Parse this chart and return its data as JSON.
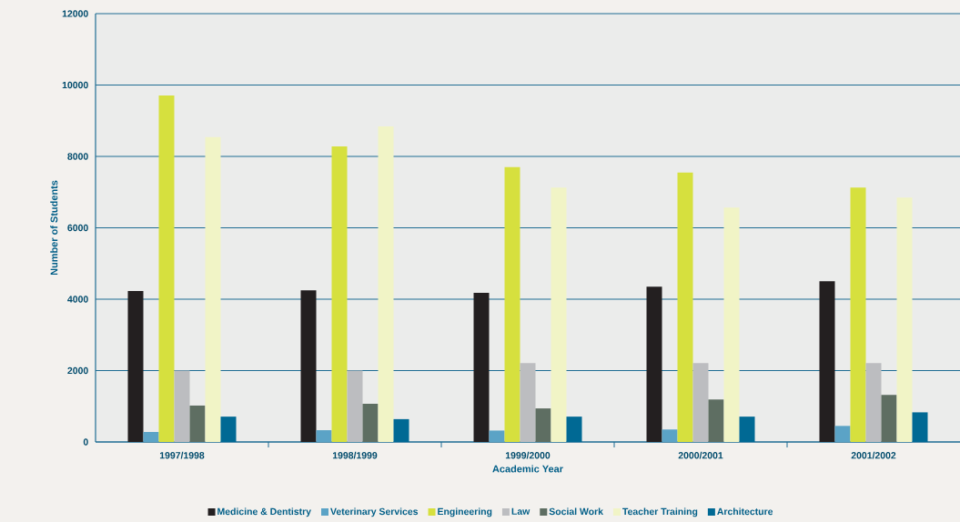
{
  "chart_data": {
    "type": "bar",
    "xlabel": "Academic Year",
    "ylabel": "Number of Students",
    "categories": [
      "1997/1998",
      "1998/1999",
      "1999/2000",
      "2000/2001",
      "2001/2002"
    ],
    "series": [
      {
        "name": "Medicine & Dentistry",
        "color": "#231f20",
        "values": [
          4230,
          4250,
          4180,
          4350,
          4500
        ]
      },
      {
        "name": "Veterinary Services",
        "color": "#5ba3c6",
        "values": [
          280,
          330,
          320,
          350,
          450
        ]
      },
      {
        "name": "Engineering",
        "color": "#d6e03e",
        "values": [
          9710,
          8280,
          7700,
          7550,
          7130
        ]
      },
      {
        "name": "Law",
        "color": "#bcbdc0",
        "values": [
          2000,
          2000,
          2210,
          2210,
          2210
        ]
      },
      {
        "name": "Social Work",
        "color": "#5e6e62",
        "values": [
          1020,
          1070,
          940,
          1190,
          1320
        ]
      },
      {
        "name": "Teacher Training",
        "color": "#f1f4c6",
        "values": [
          8540,
          8840,
          7130,
          6570,
          6850
        ]
      },
      {
        "name": "Architecture",
        "color": "#006994",
        "values": [
          710,
          640,
          710,
          710,
          830
        ]
      }
    ],
    "ylim": [
      0,
      12000
    ],
    "yticks": [
      0,
      2000,
      4000,
      6000,
      8000,
      10000,
      12000
    ],
    "grid": "y",
    "legend": "bottom"
  }
}
